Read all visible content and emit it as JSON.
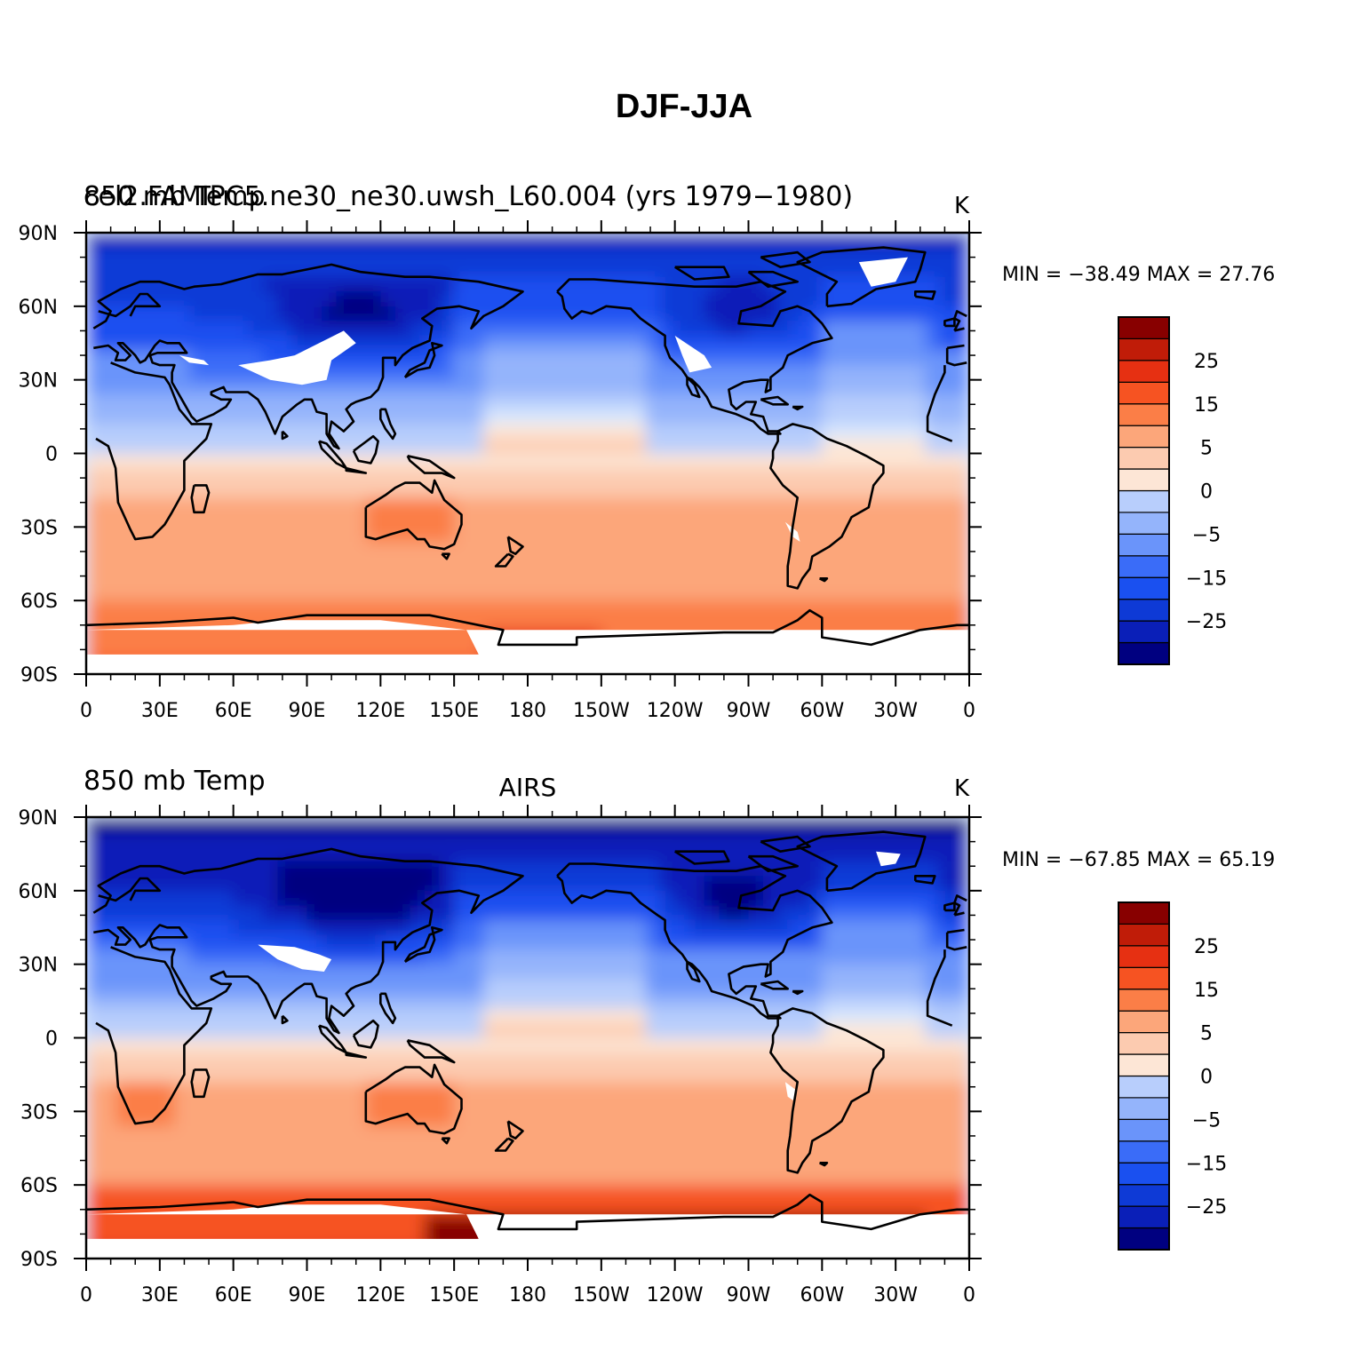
{
  "title": "DJF-JJA",
  "palette": [
    "#000080",
    "#0a1fb8",
    "#0e3ad6",
    "#1a50f0",
    "#3a6cf8",
    "#6a94fa",
    "#94b4fb",
    "#b8cefc",
    "#d8e8fe",
    "#fde6d6",
    "#fccbb0",
    "#fca67a",
    "#fb7e47",
    "#f65322",
    "#e63012",
    "#c01c08",
    "#880000"
  ],
  "colorbar_labels": [
    "25",
    "15",
    "5",
    "0",
    "−5",
    "−15",
    "−25"
  ],
  "x_tick_labels": [
    "0",
    "30E",
    "60E",
    "90E",
    "120E",
    "150E",
    "180",
    "150W",
    "120W",
    "90W",
    "60W",
    "30W",
    "0"
  ],
  "y_tick_labels": [
    "90N",
    "60N",
    "30N",
    "0",
    "30S",
    "60S",
    "90S"
  ],
  "panels": [
    {
      "left_title": "850 mb Temp",
      "center_title": "",
      "overlap_title": "cel2.FAMIPC5.ne30_ne30.uwsh_L60.004 (yrs 1979−1980)",
      "units": "K",
      "min_max": "MIN = −38.49  MAX =   27.76",
      "field": "model"
    },
    {
      "left_title": "850 mb Temp",
      "center_title": "AIRS",
      "overlap_title": "",
      "units": "K",
      "min_max": "MIN = −67.85  MAX =   65.19",
      "field": "obs"
    }
  ]
}
